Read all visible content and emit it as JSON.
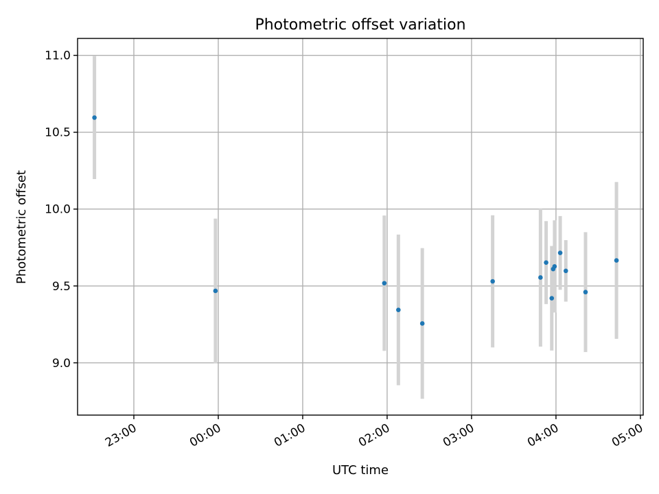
{
  "chart_data": {
    "type": "scatter",
    "title": "Photometric offset variation",
    "xlabel": "UTC time",
    "ylabel": "Photometric offset",
    "x_axis": {
      "kind": "time",
      "range": [
        "22:20",
        "05:02"
      ],
      "ticks": [
        "23:00",
        "00:00",
        "01:00",
        "02:00",
        "03:00",
        "04:00",
        "05:00"
      ]
    },
    "y_axis": {
      "range": [
        8.66,
        11.11
      ],
      "ticks": [
        "9.0",
        "9.5",
        "10.0",
        "10.5",
        "11.0"
      ]
    },
    "grid": true,
    "marker_color": "#1f77b4",
    "errorbar_color": "#d3d3d3",
    "points": [
      {
        "time": "22:32",
        "y": 10.595,
        "err": 0.4
      },
      {
        "time": "23:58",
        "y": 9.468,
        "err": 0.47
      },
      {
        "time": "01:58",
        "y": 9.518,
        "err": 0.44
      },
      {
        "time": "02:08",
        "y": 9.344,
        "err": 0.49
      },
      {
        "time": "02:25",
        "y": 9.256,
        "err": 0.49
      },
      {
        "time": "03:15",
        "y": 9.53,
        "err": 0.43
      },
      {
        "time": "03:49",
        "y": 9.555,
        "err": 0.45
      },
      {
        "time": "03:53",
        "y": 9.652,
        "err": 0.27
      },
      {
        "time": "03:57",
        "y": 9.42,
        "err": 0.34
      },
      {
        "time": "03:58",
        "y": 9.61,
        "err": 0.15
      },
      {
        "time": "03:59",
        "y": 9.627,
        "err": 0.3
      },
      {
        "time": "04:03",
        "y": 9.715,
        "err": 0.24
      },
      {
        "time": "04:07",
        "y": 9.598,
        "err": 0.2
      },
      {
        "time": "04:21",
        "y": 9.46,
        "err": 0.39
      },
      {
        "time": "04:43",
        "y": 9.666,
        "err": 0.51
      }
    ]
  }
}
